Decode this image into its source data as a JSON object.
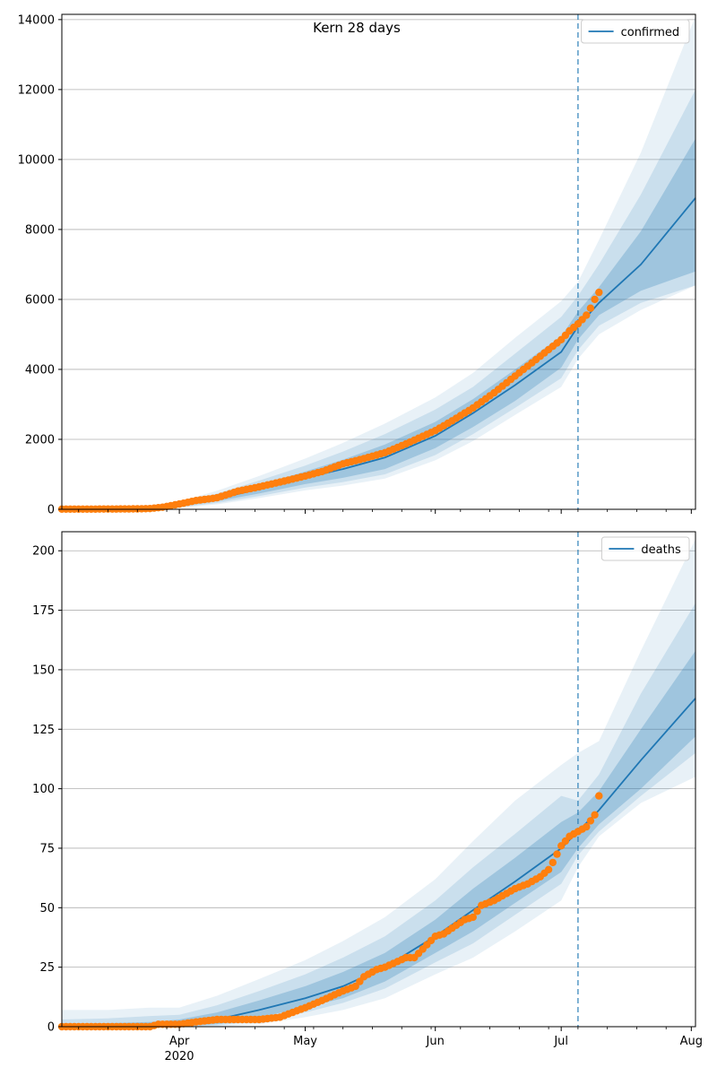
{
  "figure": {
    "title": "Kern 28 days",
    "year_label": "2020"
  },
  "chart_data": [
    {
      "type": "line",
      "title": "Kern 28 days",
      "legend": {
        "label": "confirmed",
        "placement": "upper-right"
      },
      "xlim": [
        "2020-03-04",
        "2020-08-02"
      ],
      "ylim": [
        0,
        14150
      ],
      "yticks": [
        0,
        2000,
        4000,
        6000,
        8000,
        10000,
        12000,
        14000
      ],
      "xticks": [
        {
          "date": "2020-04-01",
          "label": "Apr"
        },
        {
          "date": "2020-05-01",
          "label": "May"
        },
        {
          "date": "2020-06-01",
          "label": "Jun"
        },
        {
          "date": "2020-07-01",
          "label": "Jul"
        },
        {
          "date": "2020-08-01",
          "label": "Aug"
        }
      ],
      "grid": "horizontal",
      "forecast_start": "2020-07-05",
      "series": [
        {
          "name": "confirmed",
          "kind": "model-median",
          "color": "#1f77b4",
          "x": [
            "2020-03-04",
            "2020-03-15",
            "2020-03-25",
            "2020-04-01",
            "2020-04-10",
            "2020-04-20",
            "2020-05-01",
            "2020-05-10",
            "2020-05-20",
            "2020-06-01",
            "2020-06-10",
            "2020-06-20",
            "2020-07-01",
            "2020-07-05",
            "2020-07-10",
            "2020-07-20",
            "2020-08-02"
          ],
          "y": [
            0,
            10,
            30,
            110,
            300,
            580,
            900,
            1150,
            1480,
            2100,
            2750,
            3550,
            4500,
            5230,
            5900,
            7000,
            8900
          ],
          "bands": [
            {
              "lower": [
                0,
                0,
                0,
                80,
                230,
                450,
                720,
                900,
                1150,
                1750,
                2350,
                3100,
                4050,
                4850,
                5550,
                6250,
                6800
              ],
              "upper": [
                0,
                20,
                55,
                150,
                380,
                700,
                1080,
                1420,
                1850,
                2500,
                3150,
                4000,
                4950,
                5650,
                6350,
                7950,
                10600
              ]
            },
            {
              "lower": [
                0,
                0,
                0,
                60,
                180,
                380,
                620,
                780,
                1000,
                1550,
                2150,
                2900,
                3750,
                4550,
                5250,
                5900,
                6400
              ],
              "upper": [
                0,
                30,
                80,
                180,
                450,
                820,
                1250,
                1650,
                2150,
                2850,
                3500,
                4450,
                5500,
                6100,
                7000,
                9000,
                12000
              ]
            },
            {
              "lower": [
                0,
                0,
                0,
                40,
                140,
                320,
                540,
                680,
                880,
                1400,
                1950,
                2700,
                3500,
                4300,
                5000,
                5700,
                6400
              ],
              "upper": [
                0,
                45,
                110,
                220,
                530,
                950,
                1450,
                1900,
                2450,
                3200,
                3900,
                4900,
                5950,
                6500,
                7700,
                10200,
                14100
              ]
            }
          ]
        },
        {
          "name": "observed",
          "kind": "observed-points",
          "color": "#ff7f0e",
          "x": [
            "2020-03-04",
            "2020-03-10",
            "2020-03-15",
            "2020-03-20",
            "2020-03-25",
            "2020-03-28",
            "2020-04-01",
            "2020-04-05",
            "2020-04-10",
            "2020-04-15",
            "2020-04-20",
            "2020-04-25",
            "2020-05-01",
            "2020-05-05",
            "2020-05-10",
            "2020-05-15",
            "2020-05-20",
            "2020-05-25",
            "2020-06-01",
            "2020-06-05",
            "2020-06-10",
            "2020-06-15",
            "2020-06-20",
            "2020-06-25",
            "2020-07-01",
            "2020-07-03",
            "2020-07-05",
            "2020-07-07",
            "2020-07-08",
            "2020-07-09",
            "2020-07-10"
          ],
          "y": [
            5,
            5,
            8,
            10,
            20,
            60,
            150,
            250,
            330,
            520,
            640,
            780,
            950,
            1080,
            1300,
            1450,
            1620,
            1870,
            2250,
            2530,
            2900,
            3330,
            3810,
            4280,
            4850,
            5100,
            5300,
            5550,
            5750,
            6000,
            6200
          ]
        }
      ]
    },
    {
      "type": "line",
      "legend": {
        "label": "deaths",
        "placement": "upper-right"
      },
      "xlim": [
        "2020-03-04",
        "2020-08-02"
      ],
      "ylim": [
        0,
        208
      ],
      "yticks": [
        0,
        25,
        50,
        75,
        100,
        125,
        150,
        175,
        200
      ],
      "xticks": [
        {
          "date": "2020-04-01",
          "label": "Apr"
        },
        {
          "date": "2020-05-01",
          "label": "May"
        },
        {
          "date": "2020-06-01",
          "label": "Jun"
        },
        {
          "date": "2020-07-01",
          "label": "Jul"
        },
        {
          "date": "2020-08-01",
          "label": "Aug"
        }
      ],
      "grid": "horizontal",
      "forecast_start": "2020-07-05",
      "series": [
        {
          "name": "deaths",
          "kind": "model-median",
          "color": "#1f77b4",
          "x": [
            "2020-03-04",
            "2020-03-15",
            "2020-03-25",
            "2020-04-01",
            "2020-04-10",
            "2020-04-20",
            "2020-05-01",
            "2020-05-10",
            "2020-05-20",
            "2020-06-01",
            "2020-06-10",
            "2020-06-20",
            "2020-07-01",
            "2020-07-05",
            "2020-07-10",
            "2020-07-20",
            "2020-08-02"
          ],
          "y": [
            0,
            0,
            0.5,
            1,
            3,
            7,
            12,
            17,
            25,
            38,
            49,
            61,
            75,
            82,
            91,
            112,
            138
          ],
          "bands": [
            {
              "lower": [
                0,
                0,
                0,
                0,
                1,
                4,
                8,
                12,
                19,
                31,
                40,
                52,
                65,
                75,
                85,
                100,
                122
              ],
              "upper": [
                1,
                1.5,
                2,
                3,
                6,
                11,
                17,
                23,
                31,
                45,
                58,
                71,
                86,
                90,
                99,
                125,
                158
              ]
            },
            {
              "lower": [
                0,
                0,
                0,
                0,
                0.5,
                2.5,
                6,
                10,
                16,
                27,
                35,
                47,
                60,
                72,
                82,
                97,
                115
              ],
              "upper": [
                3,
                3.5,
                4.5,
                5,
                9,
                15,
                22,
                29,
                38,
                53,
                67,
                81,
                97,
                95,
                106,
                140,
                178
              ]
            },
            {
              "lower": [
                0,
                0,
                0,
                0,
                0,
                1,
                4,
                7,
                12,
                22,
                29,
                40,
                53,
                67,
                80,
                94,
                105
              ],
              "upper": [
                7,
                7,
                8,
                8,
                13,
                20,
                28,
                36,
                46,
                62,
                78,
                95,
                110,
                115,
                120,
                158,
                205
              ]
            }
          ]
        },
        {
          "name": "observed",
          "kind": "observed-points",
          "color": "#ff7f0e",
          "x": [
            "2020-03-04",
            "2020-03-15",
            "2020-03-25",
            "2020-03-27",
            "2020-04-01",
            "2020-04-05",
            "2020-04-10",
            "2020-04-15",
            "2020-04-20",
            "2020-04-25",
            "2020-05-01",
            "2020-05-05",
            "2020-05-10",
            "2020-05-13",
            "2020-05-15",
            "2020-05-18",
            "2020-05-20",
            "2020-05-25",
            "2020-05-27",
            "2020-06-01",
            "2020-06-03",
            "2020-06-08",
            "2020-06-10",
            "2020-06-12",
            "2020-06-15",
            "2020-06-20",
            "2020-06-23",
            "2020-06-26",
            "2020-06-28",
            "2020-06-29",
            "2020-07-01",
            "2020-07-03",
            "2020-07-05",
            "2020-07-07",
            "2020-07-09",
            "2020-07-10"
          ],
          "y": [
            0,
            0,
            0,
            1,
            1,
            2,
            3,
            3,
            3,
            4,
            8,
            11,
            15,
            17,
            21,
            24,
            25,
            29,
            29,
            38,
            39,
            45,
            46,
            51,
            53,
            58,
            60,
            63,
            66,
            69,
            76,
            80,
            82,
            84,
            89,
            97
          ]
        }
      ]
    }
  ]
}
